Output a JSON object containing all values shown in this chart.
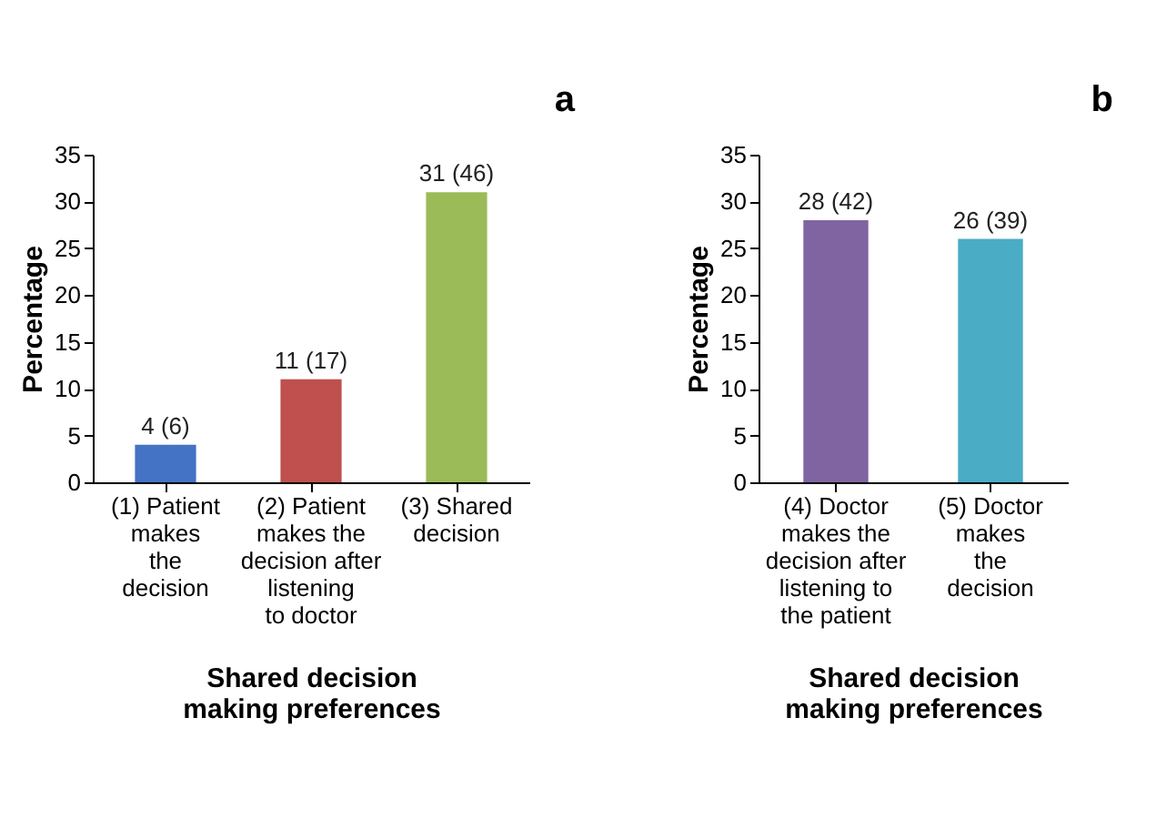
{
  "chart_data": [
    {
      "type": "bar",
      "categories": [
        "(1) Patient\nmakes\nthe\ndecision",
        "(2) Patient\nmakes the\ndecision after\nlistening\nto doctor",
        "(3) Shared\ndecision"
      ],
      "values": [
        4,
        11,
        31
      ],
      "colors": [
        "#4472c4",
        "#c0504d",
        "#9bbb59"
      ],
      "value_labels": [
        "4 (6)",
        "11 (17)",
        "31 (46)"
      ],
      "ylabel": "Percentage",
      "xlabel": "Shared decision\nmaking preferences",
      "ylim": [
        0,
        35
      ],
      "yticks": [
        0,
        5,
        10,
        15,
        20,
        25,
        30,
        35
      ],
      "grid": false,
      "annotations": [
        "a"
      ]
    },
    {
      "type": "bar",
      "categories": [
        "(4) Doctor\nmakes the\ndecision after\nlistening to\nthe patient",
        "(5) Doctor\nmakes\nthe\ndecision"
      ],
      "values": [
        28,
        26
      ],
      "colors": [
        "#8064a2",
        "#4bacc6"
      ],
      "value_labels": [
        "28 (42)",
        "26 (39)"
      ],
      "ylabel": "Percentage",
      "xlabel": "Shared decision\nmaking preferences",
      "ylim": [
        0,
        35
      ],
      "yticks": [
        0,
        5,
        10,
        15,
        20,
        25,
        30,
        35
      ],
      "grid": false,
      "annotations": [
        "b"
      ]
    }
  ]
}
